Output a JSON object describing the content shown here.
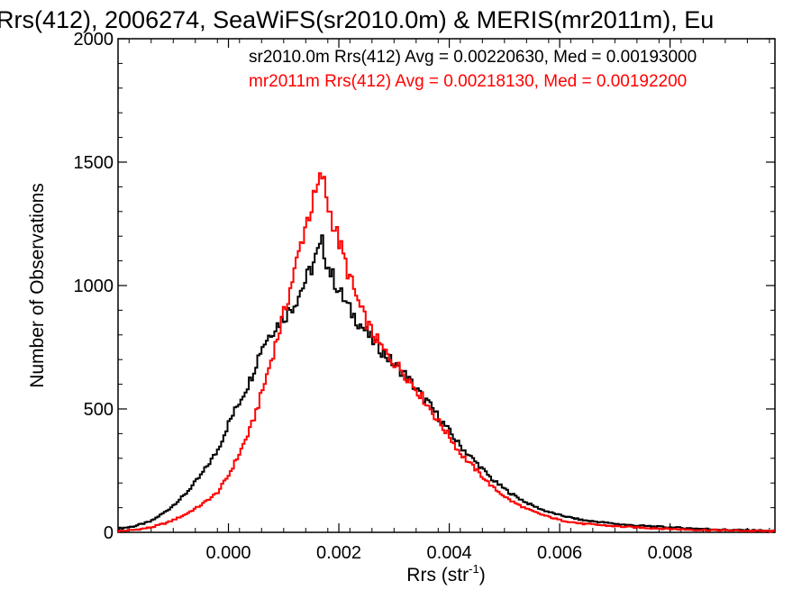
{
  "chart_data": {
    "type": "line",
    "title": "Rrs(412), 2006274, SeaWiFS(sr2010.0m) & MERIS(mr2011m), Eu",
    "xlabel": "Rrs (str",
    "xlabel_sup": "-1",
    "xlabel_close": ")",
    "ylabel": "Number of Observations",
    "xlim": [
      -0.002,
      0.0099
    ],
    "ylim": [
      0,
      2000
    ],
    "xticks": [
      "0.000",
      "0.002",
      "0.004",
      "0.006",
      "0.008"
    ],
    "xtick_values": [
      0.0,
      0.002,
      0.004,
      0.006,
      0.008
    ],
    "yticks": [
      "0",
      "500",
      "1000",
      "1500",
      "2000"
    ],
    "ytick_values": [
      0,
      500,
      1000,
      1500,
      2000
    ],
    "grid": false,
    "legend_position": "top-right",
    "series": [
      {
        "name": "sr2010.0m Rrs(412) Avg = 0.00220630, Med = 0.00193000",
        "color": "#000000",
        "x": [
          -0.002,
          -0.0017,
          -0.0014,
          -0.0011,
          -0.0008,
          -0.0005,
          -0.0002,
          0.0,
          0.0002,
          0.0004,
          0.0006,
          0.0008,
          0.001,
          0.0012,
          0.0014,
          0.0016,
          0.0017,
          0.0018,
          0.002,
          0.0022,
          0.0024,
          0.0026,
          0.0028,
          0.003,
          0.0032,
          0.0034,
          0.0036,
          0.0038,
          0.004,
          0.0042,
          0.0045,
          0.0048,
          0.0051,
          0.0054,
          0.0057,
          0.006,
          0.0064,
          0.0068,
          0.0072,
          0.0076,
          0.008,
          0.0085,
          0.009,
          0.0095,
          0.0099
        ],
        "values": [
          15,
          25,
          45,
          90,
          150,
          230,
          330,
          440,
          530,
          620,
          750,
          820,
          870,
          930,
          1020,
          1120,
          1170,
          1080,
          980,
          900,
          840,
          780,
          730,
          680,
          640,
          580,
          530,
          470,
          410,
          350,
          280,
          210,
          160,
          120,
          90,
          70,
          50,
          40,
          30,
          25,
          20,
          15,
          10,
          8,
          5
        ]
      },
      {
        "name": "mr2011m Rrs(412) Avg = 0.00218130, Med = 0.00192200",
        "color": "#ff0000",
        "x": [
          -0.002,
          -0.0017,
          -0.0014,
          -0.0011,
          -0.0008,
          -0.0005,
          -0.0002,
          0.0,
          0.0002,
          0.0004,
          0.0006,
          0.0008,
          0.001,
          0.0012,
          0.0014,
          0.0016,
          0.0017,
          0.0018,
          0.002,
          0.0022,
          0.0024,
          0.0026,
          0.0028,
          0.003,
          0.0032,
          0.0034,
          0.0036,
          0.0038,
          0.004,
          0.0042,
          0.0045,
          0.0048,
          0.0051,
          0.0054,
          0.0057,
          0.006,
          0.0064,
          0.0068,
          0.0072,
          0.0076,
          0.008,
          0.0085,
          0.009,
          0.0095,
          0.0099
        ],
        "values": [
          5,
          10,
          20,
          40,
          70,
          110,
          160,
          230,
          320,
          420,
          560,
          720,
          880,
          1060,
          1250,
          1380,
          1450,
          1330,
          1180,
          1030,
          900,
          810,
          740,
          690,
          640,
          580,
          520,
          450,
          390,
          320,
          250,
          180,
          130,
          95,
          70,
          50,
          35,
          28,
          22,
          18,
          14,
          10,
          8,
          6,
          4
        ]
      }
    ]
  }
}
